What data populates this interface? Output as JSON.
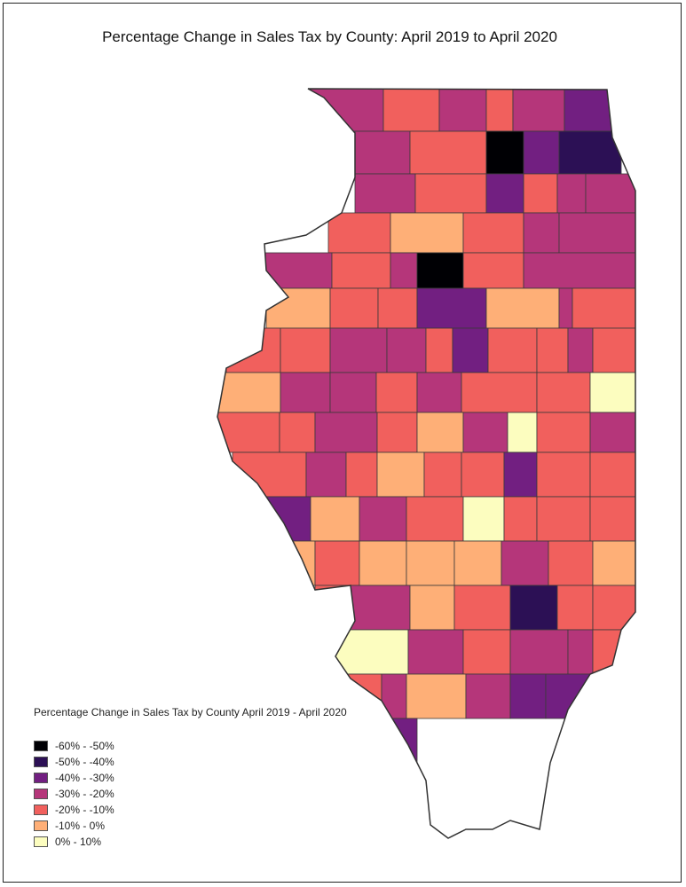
{
  "title": "Percentage Change in Sales Tax by County: April 2019 to April 2020",
  "legend": {
    "title": "Percentage Change in Sales Tax by County April 2019 - April 2020",
    "classes": [
      {
        "label": "-60% - -50%",
        "color": "#000004"
      },
      {
        "label": "-50% - -40%",
        "color": "#2c1055"
      },
      {
        "label": "-40% - -30%",
        "color": "#721f81"
      },
      {
        "label": "-30% - -20%",
        "color": "#b5367a"
      },
      {
        "label": "-20% - -10%",
        "color": "#f1605d"
      },
      {
        "label": "-10% - 0%",
        "color": "#feaf77"
      },
      {
        "label": "0% - 10%",
        "color": "#fcfdbf"
      }
    ]
  },
  "map_data": {
    "region": "Illinois",
    "counties": [
      {
        "class": 3
      },
      {
        "class": 4
      },
      {
        "class": 3
      },
      {
        "class": 4
      },
      {
        "class": 3
      },
      {
        "class": 2
      },
      {
        "class": 3
      },
      {
        "class": 4
      },
      {
        "class": 0
      },
      {
        "class": 2
      },
      {
        "class": 1
      },
      {
        "class": 3
      },
      {
        "class": 4
      },
      {
        "class": 2
      },
      {
        "class": 4
      },
      {
        "class": 3
      },
      {
        "class": 3
      },
      {
        "class": 4
      },
      {
        "class": 5
      },
      {
        "class": 4
      },
      {
        "class": 3
      },
      {
        "class": 3
      },
      {
        "class": 3
      },
      {
        "class": 4
      },
      {
        "class": 3
      },
      {
        "class": 0
      },
      {
        "class": 4
      },
      {
        "class": 3
      },
      {
        "class": 5
      },
      {
        "class": 4
      },
      {
        "class": 4
      },
      {
        "class": 2
      },
      {
        "class": 5
      },
      {
        "class": 3
      },
      {
        "class": 4
      },
      {
        "class": 4
      },
      {
        "class": 4
      },
      {
        "class": 3
      },
      {
        "class": 3
      },
      {
        "class": 4
      },
      {
        "class": 2
      },
      {
        "class": 4
      },
      {
        "class": 4
      },
      {
        "class": 3
      },
      {
        "class": 4
      },
      {
        "class": 5
      },
      {
        "class": 3
      },
      {
        "class": 3
      },
      {
        "class": 4
      },
      {
        "class": 3
      },
      {
        "class": 4
      },
      {
        "class": 4
      },
      {
        "class": 6
      },
      {
        "class": 4
      },
      {
        "class": 4
      },
      {
        "class": 3
      },
      {
        "class": 4
      },
      {
        "class": 5
      },
      {
        "class": 3
      },
      {
        "class": 6
      },
      {
        "class": 4
      },
      {
        "class": 3
      },
      {
        "class": 4
      },
      {
        "class": 3
      },
      {
        "class": 4
      },
      {
        "class": 5
      },
      {
        "class": 4
      },
      {
        "class": 4
      },
      {
        "class": 2
      },
      {
        "class": 4
      },
      {
        "class": 4
      },
      {
        "class": 2
      },
      {
        "class": 5
      },
      {
        "class": 3
      },
      {
        "class": 4
      },
      {
        "class": 6
      },
      {
        "class": 4
      },
      {
        "class": 4
      },
      {
        "class": 4
      },
      {
        "class": 5
      },
      {
        "class": 4
      },
      {
        "class": 5
      },
      {
        "class": 5
      },
      {
        "class": 5
      },
      {
        "class": 3
      },
      {
        "class": 4
      },
      {
        "class": 5
      },
      {
        "class": 4
      },
      {
        "class": 3
      },
      {
        "class": 5
      },
      {
        "class": 4
      },
      {
        "class": 1
      },
      {
        "class": 4
      },
      {
        "class": 4
      },
      {
        "class": 6
      },
      {
        "class": 3
      },
      {
        "class": 4
      },
      {
        "class": 3
      },
      {
        "class": 3
      },
      {
        "class": 4
      },
      {
        "class": 4
      },
      {
        "class": 3
      },
      {
        "class": 5
      },
      {
        "class": 3
      },
      {
        "class": 2
      },
      {
        "class": 2
      },
      {
        "class": 3
      },
      {
        "class": 2
      }
    ]
  }
}
